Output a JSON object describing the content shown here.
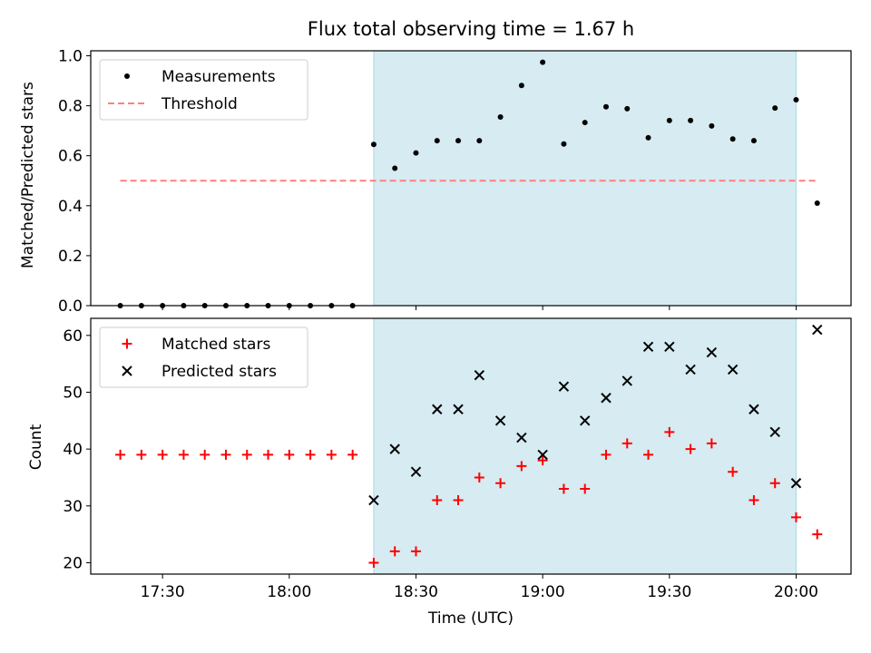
{
  "chart_data": {
    "title": "Flux total observing time = 1.67 h",
    "xlabel": "Time (UTC)",
    "x_tick_labels": [
      "17:30",
      "18:00",
      "18:30",
      "19:00",
      "19:30",
      "20:00"
    ],
    "x_tick_times": [
      "17:30",
      "18:00",
      "18:30",
      "19:00",
      "19:30",
      "20:00"
    ],
    "x_range": [
      "17:13",
      "20:13"
    ],
    "shaded_region": {
      "start": "18:20",
      "end": "20:00",
      "color": "#add8e6"
    },
    "panels": [
      {
        "type": "scatter",
        "ylabel": "Matched/Predicted stars",
        "ylim": [
          0,
          1.02
        ],
        "y_ticks": [
          "0.0",
          "0.2",
          "0.4",
          "0.6",
          "0.8",
          "1.0"
        ],
        "y_tick_values": [
          0,
          0.2,
          0.4,
          0.6,
          0.8,
          1.0
        ],
        "legend_position": "upper-left",
        "series": [
          {
            "name": "Measurements",
            "kind": "dot",
            "color": "#000000",
            "x": [
              "17:20",
              "17:25",
              "17:30",
              "17:35",
              "17:40",
              "17:45",
              "17:50",
              "17:55",
              "18:00",
              "18:05",
              "18:10",
              "18:15",
              "18:20",
              "18:25",
              "18:30",
              "18:35",
              "18:40",
              "18:45",
              "18:50",
              "18:55",
              "19:00",
              "19:05",
              "19:10",
              "19:15",
              "19:20",
              "19:25",
              "19:30",
              "19:35",
              "19:40",
              "19:45",
              "19:50",
              "19:55",
              "20:00",
              "20:05"
            ],
            "y": [
              0,
              0,
              0,
              0,
              0,
              0,
              0,
              0,
              0,
              0,
              0,
              0,
              0.645,
              0.55,
              0.611,
              0.66,
              0.66,
              0.66,
              0.755,
              0.881,
              0.974,
              0.647,
              0.733,
              0.796,
              0.788,
              0.672,
              0.741,
              0.741,
              0.719,
              0.667,
              0.66,
              0.791,
              0.824,
              0.41
            ]
          },
          {
            "name": "Threshold",
            "kind": "dashed-line",
            "color": "#ff7f7f",
            "x": [
              "17:20",
              "20:05"
            ],
            "y": [
              0.5,
              0.5
            ]
          }
        ]
      },
      {
        "type": "scatter",
        "ylabel": "Count",
        "ylim": [
          18,
          63
        ],
        "y_ticks": [
          "20",
          "30",
          "40",
          "50",
          "60"
        ],
        "y_tick_values": [
          20,
          30,
          40,
          50,
          60
        ],
        "legend_position": "upper-left",
        "series": [
          {
            "name": "Matched stars",
            "kind": "plus",
            "color": "#ff0000",
            "x": [
              "17:20",
              "17:25",
              "17:30",
              "17:35",
              "17:40",
              "17:45",
              "17:50",
              "17:55",
              "18:00",
              "18:05",
              "18:10",
              "18:15",
              "18:20",
              "18:25",
              "18:30",
              "18:35",
              "18:40",
              "18:45",
              "18:50",
              "18:55",
              "19:00",
              "19:05",
              "19:10",
              "19:15",
              "19:20",
              "19:25",
              "19:30",
              "19:35",
              "19:40",
              "19:45",
              "19:50",
              "19:55",
              "20:00",
              "20:05"
            ],
            "y": [
              39,
              39,
              39,
              39,
              39,
              39,
              39,
              39,
              39,
              39,
              39,
              39,
              20,
              22,
              22,
              31,
              31,
              35,
              34,
              37,
              38,
              33,
              33,
              39,
              41,
              39,
              43,
              40,
              41,
              36,
              31,
              34,
              28,
              25
            ]
          },
          {
            "name": "Predicted stars",
            "kind": "x",
            "color": "#000000",
            "x": [
              "18:20",
              "18:25",
              "18:30",
              "18:35",
              "18:40",
              "18:45",
              "18:50",
              "18:55",
              "19:00",
              "19:05",
              "19:10",
              "19:15",
              "19:20",
              "19:25",
              "19:30",
              "19:35",
              "19:40",
              "19:45",
              "19:50",
              "19:55",
              "20:00",
              "20:05"
            ],
            "y": [
              31,
              40,
              36,
              47,
              47,
              53,
              45,
              42,
              39,
              51,
              45,
              49,
              52,
              58,
              58,
              54,
              57,
              54,
              47,
              43,
              34,
              61
            ]
          }
        ]
      }
    ]
  }
}
